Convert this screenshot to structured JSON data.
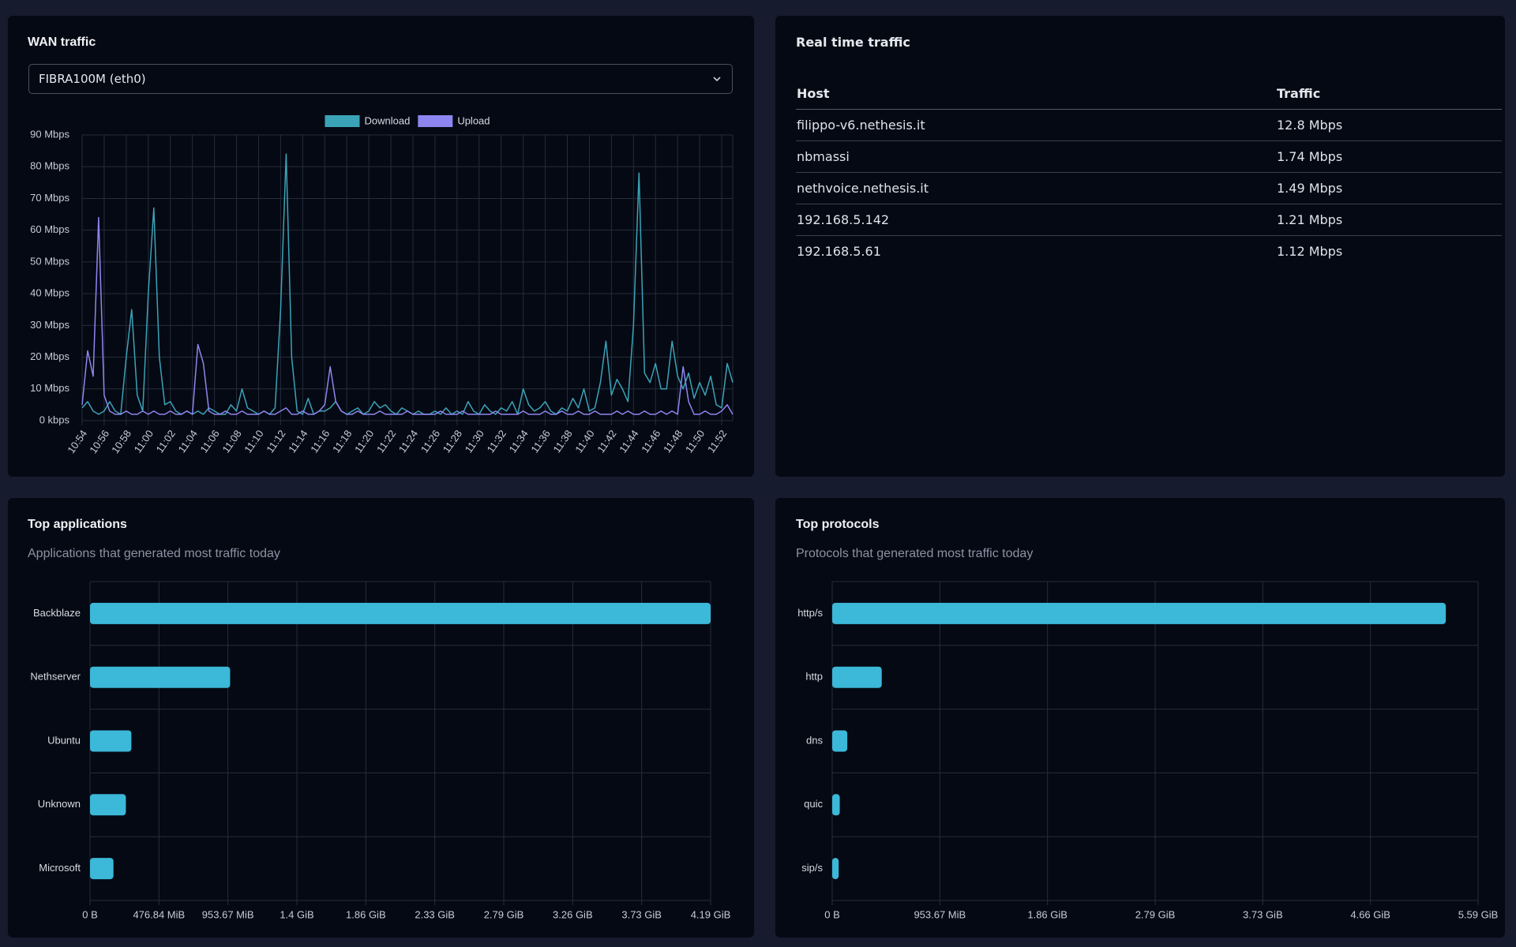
{
  "select": "FIBRA100M (eth0)",
  "realtime": {
    "title": "Real time traffic",
    "columns": [
      "Host",
      "Traffic"
    ],
    "rows": [
      [
        "filippo-v6.nethesis.it",
        "12.8 Mbps"
      ],
      [
        "nbmassi",
        "1.74 Mbps"
      ],
      [
        "nethvoice.nethesis.it",
        "1.49 Mbps"
      ],
      [
        "192.168.5.142",
        "1.21 Mbps"
      ],
      [
        "192.168.5.61",
        "1.12 Mbps"
      ]
    ]
  },
  "chart_data": [
    {
      "type": "line",
      "title": "WAN traffic",
      "categories": [
        "10:54",
        null,
        null,
        null,
        "10:56",
        null,
        null,
        null,
        "10:58",
        null,
        null,
        null,
        "11:00",
        null,
        null,
        null,
        "11:02",
        null,
        null,
        null,
        "11:04",
        null,
        null,
        null,
        "11:06",
        null,
        null,
        null,
        "11:08",
        null,
        null,
        null,
        "11:10",
        null,
        null,
        null,
        "11:12",
        null,
        null,
        null,
        "11:14",
        null,
        null,
        null,
        "11:16",
        null,
        null,
        null,
        "11:18",
        null,
        null,
        null,
        "11:20",
        null,
        null,
        null,
        "11:22",
        null,
        null,
        null,
        "11:24",
        null,
        null,
        null,
        "11:26",
        null,
        null,
        null,
        "11:28",
        null,
        null,
        null,
        "11:30",
        null,
        null,
        null,
        "11:32",
        null,
        null,
        null,
        "11:34",
        null,
        null,
        null,
        "11:36",
        null,
        null,
        null,
        "11:38",
        null,
        null,
        null,
        "11:40",
        null,
        null,
        null,
        "11:42",
        null,
        null,
        null,
        "11:44",
        null,
        null,
        null,
        "11:46",
        null,
        null,
        null,
        "11:48",
        null,
        null,
        null,
        "11:50",
        null,
        null,
        null,
        "11:52",
        null,
        null
      ],
      "series": [
        {
          "name": "Download",
          "color": "#3ba3b8",
          "values": [
            4,
            6,
            3,
            2,
            3,
            6,
            3,
            2,
            20,
            35,
            8,
            3,
            40,
            67,
            20,
            5,
            6,
            3,
            2,
            3,
            2,
            3,
            2,
            4,
            3,
            2,
            2,
            5,
            3,
            10,
            4,
            3,
            2,
            3,
            2,
            4,
            35,
            84,
            20,
            3,
            2,
            7,
            2,
            3,
            3,
            4,
            6,
            3,
            2,
            3,
            4,
            2,
            3,
            6,
            4,
            5,
            3,
            2,
            4,
            3,
            2,
            3,
            2,
            2,
            3,
            2,
            4,
            2,
            3,
            2,
            6,
            3,
            2,
            5,
            3,
            2,
            4,
            3,
            6,
            2,
            10,
            5,
            3,
            4,
            6,
            3,
            2,
            4,
            3,
            7,
            4,
            10,
            3,
            4,
            12,
            25,
            8,
            13,
            10,
            6,
            30,
            78,
            15,
            12,
            18,
            10,
            10,
            25,
            14,
            10,
            15,
            7,
            12,
            8,
            14,
            5,
            4,
            18,
            12
          ]
        },
        {
          "name": "Upload",
          "color": "#8e86f0",
          "values": [
            5,
            22,
            14,
            64,
            8,
            3,
            2,
            2,
            3,
            2,
            2,
            3,
            2,
            3,
            2,
            2,
            3,
            2,
            2,
            3,
            2,
            24,
            18,
            3,
            2,
            2,
            3,
            2,
            2,
            3,
            2,
            2,
            2,
            3,
            2,
            2,
            3,
            4,
            2,
            2,
            3,
            2,
            2,
            3,
            5,
            17,
            6,
            3,
            2,
            2,
            3,
            2,
            2,
            2,
            3,
            2,
            2,
            2,
            2,
            3,
            2,
            2,
            2,
            2,
            2,
            3,
            2,
            2,
            2,
            3,
            2,
            2,
            2,
            2,
            2,
            3,
            2,
            2,
            2,
            2,
            3,
            2,
            2,
            2,
            3,
            2,
            2,
            3,
            2,
            2,
            3,
            2,
            2,
            3,
            2,
            2,
            2,
            3,
            2,
            3,
            2,
            2,
            3,
            2,
            2,
            3,
            2,
            3,
            2,
            17,
            6,
            2,
            2,
            3,
            2,
            2,
            3,
            5,
            2
          ]
        }
      ],
      "ylim": [
        0,
        90
      ],
      "yticks": [
        {
          "value": 0,
          "label": "0 kbps"
        },
        {
          "value": 10,
          "label": "10 Mbps"
        },
        {
          "value": 20,
          "label": "20 Mbps"
        },
        {
          "value": 30,
          "label": "30 Mbps"
        },
        {
          "value": 40,
          "label": "40 Mbps"
        },
        {
          "value": 50,
          "label": "50 Mbps"
        },
        {
          "value": 60,
          "label": "60 Mbps"
        },
        {
          "value": 70,
          "label": "70 Mbps"
        },
        {
          "value": 80,
          "label": "80 Mbps"
        },
        {
          "value": 90,
          "label": "90 Mbps"
        }
      ],
      "grid": true,
      "legend": "top"
    },
    {
      "type": "hbar",
      "title": "Top applications",
      "subtitle": "Applications that generated most traffic today",
      "categories": [
        "Backblaze",
        "Nethserver",
        "Ubuntu",
        "Unknown",
        "Microsoft"
      ],
      "values": [
        4500000000,
        1016000000,
        300000000,
        260000000,
        170000000
      ],
      "color": "#3cb8d8",
      "xlim": [
        0,
        4500000000
      ],
      "xticks": [
        {
          "value": 0,
          "label": "0 B"
        },
        {
          "value": 500000000,
          "label": "476.84 MiB"
        },
        {
          "value": 1000000000,
          "label": "953.67 MiB"
        },
        {
          "value": 1500000000,
          "label": "1.4 GiB"
        },
        {
          "value": 2000000000,
          "label": "1.86 GiB"
        },
        {
          "value": 2500000000,
          "label": "2.33 GiB"
        },
        {
          "value": 3000000000,
          "label": "2.79 GiB"
        },
        {
          "value": 3500000000,
          "label": "3.26 GiB"
        },
        {
          "value": 4000000000,
          "label": "3.73 GiB"
        },
        {
          "value": 4500000000,
          "label": "4.19 GiB"
        }
      ],
      "grid": true
    },
    {
      "type": "hbar",
      "title": "Top protocols",
      "subtitle": "Protocols that generated most traffic today",
      "categories": [
        "http/s",
        "http",
        "dns",
        "quic",
        "sip/s"
      ],
      "values": [
        5700000000,
        460000000,
        140000000,
        70000000,
        60000000
      ],
      "color": "#3cb8d8",
      "xlim": [
        0,
        6000000000
      ],
      "xticks": [
        {
          "value": 0,
          "label": "0 B"
        },
        {
          "value": 1000000000,
          "label": "953.67 MiB"
        },
        {
          "value": 2000000000,
          "label": "1.86 GiB"
        },
        {
          "value": 3000000000,
          "label": "2.79 GiB"
        },
        {
          "value": 4000000000,
          "label": "3.73 GiB"
        },
        {
          "value": 5000000000,
          "label": "4.66 GiB"
        },
        {
          "value": 6000000000,
          "label": "5.59 GiB"
        }
      ],
      "grid": true
    }
  ]
}
